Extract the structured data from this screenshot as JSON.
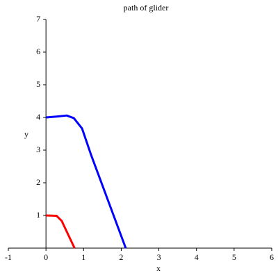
{
  "chart_data": {
    "type": "line",
    "title": "path of glider",
    "x_label": "x",
    "y_label": "y",
    "series": [
      {
        "color": "#0000ff",
        "x": [
          0,
          0.3,
          0.55,
          0.74,
          0.96,
          1.2,
          2.12
        ],
        "values": [
          4,
          4.03,
          4.06,
          3.98,
          3.66,
          2.85,
          0
        ]
      },
      {
        "color": "#ff0000",
        "x": [
          0,
          0.28,
          0.42,
          0.55,
          0.76
        ],
        "values": [
          1,
          0.99,
          0.83,
          0.51,
          0
        ]
      }
    ],
    "xlim": [
      -1,
      6
    ],
    "ylim": [
      0,
      7
    ],
    "xticks": [
      -1,
      0,
      1,
      2,
      3,
      4,
      5,
      6
    ],
    "yticks": [
      1,
      2,
      3,
      4,
      5,
      6,
      7
    ]
  }
}
